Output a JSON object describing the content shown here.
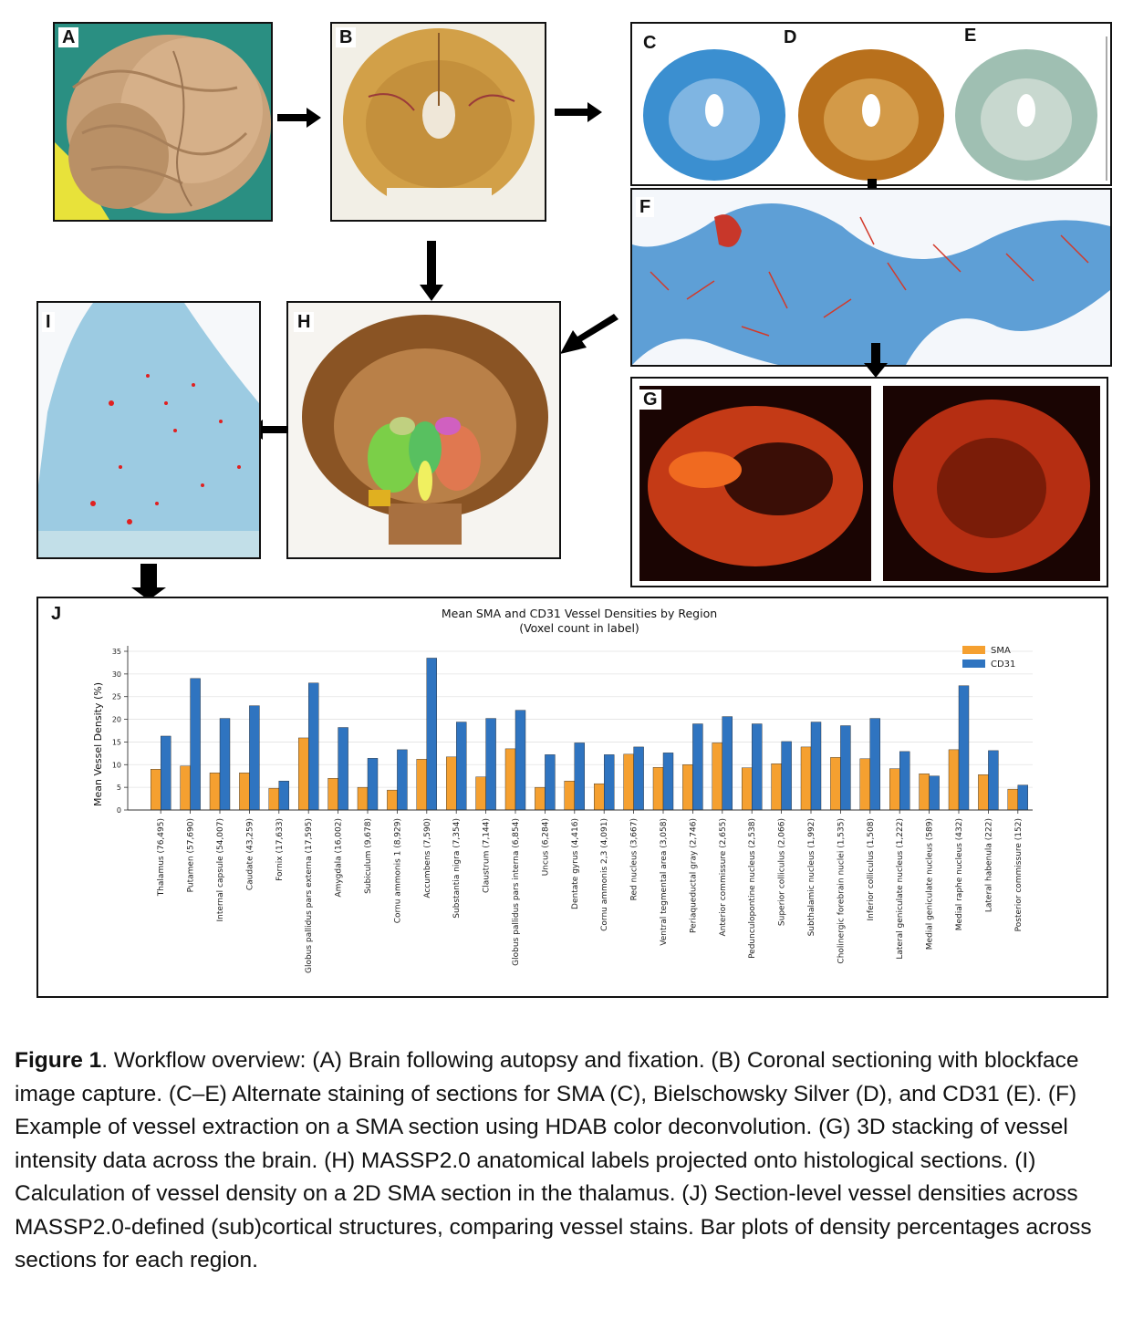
{
  "panels": {
    "a": "A",
    "b": "B",
    "c": "C",
    "d": "D",
    "e": "E",
    "f": "F",
    "g": "G",
    "h": "H",
    "i": "I",
    "j": "J"
  },
  "colors": {
    "sma": "#f5a030",
    "cd31": "#2f74c0"
  },
  "caption": {
    "label": "Figure 1",
    "text": ". Workflow overview: (A) Brain following autopsy and fixation. (B) Coronal sectioning with blockface image capture. (C–E) Alternate staining of sections for SMA (C), Bielschowsky Silver (D), and CD31 (E).  (F) Example of vessel extraction on a SMA section using HDAB color deconvolution. (G) 3D stacking of vessel intensity data across the brain. (H) MASSP2.0 anatomical labels projected onto histological sections. (I) Calculation of vessel density on a 2D SMA section in the thalamus. (J) Section-level vessel densities across MASSP2.0-defined (sub)cortical structures, comparing vessel stains. Bar plots of density percentages across sections for each region."
  },
  "chart_data": {
    "type": "bar",
    "title": "Mean SMA and CD31 Vessel Densities by Region",
    "subtitle": "(Voxel count in label)",
    "xlabel": "",
    "ylabel": "Mean Vessel Density (%)",
    "ylim": [
      0,
      35
    ],
    "yticks": [
      0,
      5,
      10,
      15,
      20,
      25,
      30,
      35
    ],
    "grid": true,
    "legend_position": "top-right",
    "categories": [
      "Thalamus (76,495)",
      "Putamen (57,690)",
      "Internal capsule (54,007)",
      "Caudate (43,259)",
      "Fornix (17,633)",
      "Globus pallidus pars externa (17,595)",
      "Amygdala (16,002)",
      "Subiculum (9,678)",
      "Cornu ammonis 1 (8,929)",
      "Accumbens (7,590)",
      "Substantia nigra (7,354)",
      "Claustrum (7,144)",
      "Globus pallidus pars interna (6,854)",
      "Uncus (6,284)",
      "Dentate gyrus (4,416)",
      "Cornu ammonis 2,3 (4,091)",
      "Red nucleus (3,667)",
      "Ventral tegmental area (3,058)",
      "Periaqueductal gray (2,746)",
      "Anterior commissure (2,655)",
      "Pedunculopontine nucleus (2,538)",
      "Superior colliculus (2,066)",
      "Subthalamic nucleus (1,992)",
      "Cholinergic forebrain nuclei (1,535)",
      "Inferior colliculus (1,508)",
      "Lateral geniculate nucleus (1,222)",
      "Medial geniculate nucleus (589)",
      "Medial raphe nucleus (432)",
      "Lateral habenula (222)",
      "Posterior commissure (152)"
    ],
    "series": [
      {
        "name": "SMA",
        "color": "#f5a030",
        "values": [
          9.0,
          9.7,
          8.2,
          8.2,
          4.8,
          15.9,
          7.0,
          5.0,
          4.4,
          11.2,
          11.7,
          7.3,
          13.5,
          5.0,
          6.4,
          5.8,
          12.3,
          9.4,
          10.0,
          14.8,
          9.3,
          10.2,
          13.9,
          11.6,
          11.3,
          9.1,
          8.0,
          13.3,
          7.8,
          4.6
        ]
      },
      {
        "name": "CD31",
        "color": "#2f74c0",
        "values": [
          16.3,
          29.0,
          20.2,
          23.0,
          6.4,
          28.0,
          18.2,
          11.4,
          13.3,
          33.5,
          19.4,
          20.2,
          22.0,
          12.2,
          14.8,
          12.2,
          13.9,
          12.6,
          19.0,
          20.6,
          19.0,
          15.1,
          19.4,
          18.6,
          20.2,
          12.9,
          7.5,
          27.4,
          13.1,
          5.5
        ]
      }
    ]
  }
}
